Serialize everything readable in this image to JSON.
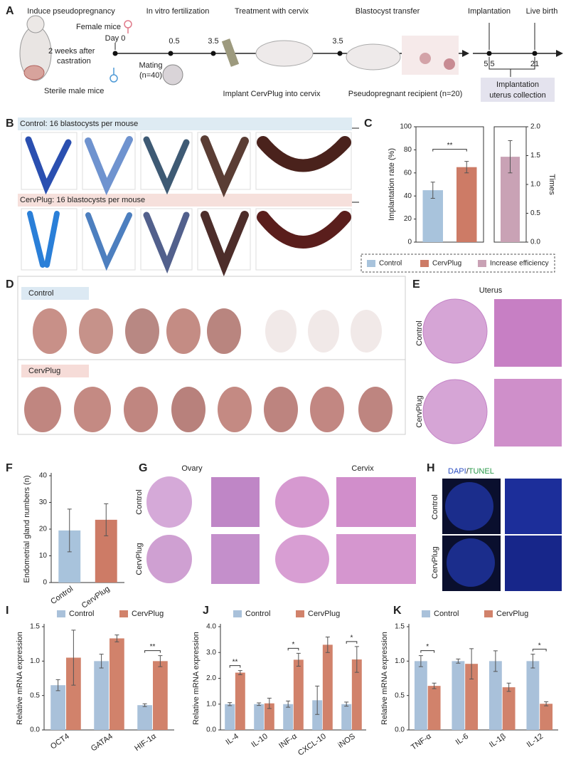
{
  "figure": {
    "panel_labels": [
      "A",
      "B",
      "C",
      "D",
      "E",
      "F",
      "G",
      "H",
      "I",
      "J",
      "K"
    ],
    "a": {
      "steps": [
        "Induce pseudopregnancy",
        "In vitro fertilization",
        "Treatment with cervix",
        "Blastocyst transfer",
        "Implantation",
        "Live birth"
      ],
      "female": "Female mice",
      "castration": [
        "2 weeks after",
        "castration"
      ],
      "male": "Sterile male mice",
      "mating": [
        "Mating",
        "(n=40)"
      ],
      "days": [
        "Day 0",
        "0.5",
        "3.5",
        "3.5",
        "5.5",
        "21"
      ],
      "implant": "Implant CervPlug into cervix",
      "recipient": "Pseudopregnant recipient (n=20)",
      "collection": [
        "Implantation",
        "uterus collection"
      ]
    },
    "b": {
      "control": "Control: 16 blastocysts per mouse",
      "cervplug": "CervPlug: 16 blastocysts per mouse"
    },
    "d": {
      "control": "Control",
      "cervplug": "CervPlug"
    },
    "e": {
      "title": "Uterus",
      "control": "Control",
      "cervplug": "CervPlug"
    },
    "g": {
      "ovary": "Ovary",
      "cervix": "Cervix",
      "control": "Control",
      "cervplug": "CervPlug"
    },
    "h": {
      "title": [
        "DAPI",
        "/",
        "TUNEL"
      ],
      "control": "Control",
      "cervplug": "CervPlug"
    }
  },
  "chart_data": [
    {
      "type": "bar",
      "ylabel": "Implantation rate (%)",
      "y2label": "Times",
      "ylim": [
        0,
        100
      ],
      "yticks": [
        0,
        20,
        40,
        60,
        80,
        100
      ],
      "y2lim": [
        0,
        2
      ],
      "y2ticks": [
        {
          "value": 0,
          "label": "0.0"
        },
        0.5,
        {
          "value": 1,
          "label": "1.0"
        },
        1.5,
        {
          "value": 2,
          "label": "2.0"
        }
      ],
      "significance": "**",
      "series": [
        {
          "name": "Control",
          "color": "#a8c3dc",
          "values": [
            45
          ],
          "errors": [
            7
          ]
        },
        {
          "name": "CervPlug",
          "color": "#cd7b66",
          "values": [
            65
          ],
          "errors": [
            5
          ]
        },
        {
          "name": "Increase efficiency",
          "color": "#c9a2b5",
          "axis": "y2",
          "values": [
            1.48
          ],
          "errors": [
            0.28
          ]
        }
      ]
    },
    {
      "type": "bar",
      "ylabel": "Endometrial gland numbers (n)",
      "ylim": [
        0,
        40
      ],
      "yticks": [
        0,
        10,
        20,
        30,
        40
      ],
      "categories": [
        "Control",
        "CervPlug"
      ],
      "values": [
        19.5,
        23.5
      ],
      "errors": [
        8,
        6
      ],
      "colors": [
        "#a8c3dc",
        "#cd7b66"
      ]
    },
    {
      "type": "bar",
      "ylabel": "Relative mRNA expression",
      "ylim": [
        0,
        1.5
      ],
      "yticks": [
        {
          "value": 0,
          "label": "0.0"
        },
        0.5,
        {
          "value": 1,
          "label": "1.0"
        },
        1.5
      ],
      "categories": [
        "OCT4",
        "GATA4",
        "HIF-1α"
      ],
      "significance": [
        null,
        null,
        "**"
      ],
      "series": [
        {
          "name": "Control",
          "color": "#a9c1da",
          "values": [
            0.65,
            1.0,
            0.36
          ],
          "errors": [
            0.08,
            0.1,
            0.02
          ]
        },
        {
          "name": "CervPlug",
          "color": "#d1826b",
          "values": [
            1.05,
            1.33,
            1.0
          ],
          "errors": [
            0.4,
            0.05,
            0.08
          ]
        }
      ]
    },
    {
      "type": "bar",
      "ylabel": "Relative mRNA expression",
      "ylim": [
        0,
        4
      ],
      "yticks": [
        {
          "value": 0,
          "label": "0.0"
        },
        {
          "value": 1,
          "label": "1.0"
        },
        {
          "value": 2,
          "label": "2.0"
        },
        {
          "value": 3,
          "label": "3.0"
        },
        {
          "value": 4,
          "label": "4.0"
        }
      ],
      "categories": [
        "IL-4",
        "IL-10",
        "INF-α",
        "CXCL-10",
        "iNOS"
      ],
      "significance": [
        "**",
        null,
        "*",
        null,
        "*"
      ],
      "series": [
        {
          "name": "Control",
          "color": "#a9c1da",
          "values": [
            1.0,
            1.0,
            1.0,
            1.15,
            1.0
          ],
          "errors": [
            0.06,
            0.05,
            0.12,
            0.55,
            0.08
          ]
        },
        {
          "name": "CervPlug",
          "color": "#d1826b",
          "values": [
            2.22,
            1.03,
            2.72,
            3.3,
            2.73
          ],
          "errors": [
            0.08,
            0.2,
            0.25,
            0.3,
            0.5
          ]
        }
      ]
    },
    {
      "type": "bar",
      "ylabel": "Relative mRNA expression",
      "ylim": [
        0,
        1.5
      ],
      "yticks": [
        {
          "value": 0,
          "label": "0.0"
        },
        0.5,
        {
          "value": 1,
          "label": "1.0"
        },
        1.5
      ],
      "categories": [
        "TNF-α",
        "IL-6",
        "IL-1β",
        "IL-12"
      ],
      "significance": [
        "*",
        null,
        null,
        "*"
      ],
      "series": [
        {
          "name": "Control",
          "color": "#a9c1da",
          "values": [
            1.0,
            1.0,
            1.0,
            1.0
          ],
          "errors": [
            0.08,
            0.03,
            0.15,
            0.1
          ]
        },
        {
          "name": "CervPlug",
          "color": "#d1826b",
          "values": [
            0.64,
            0.96,
            0.62,
            0.38
          ],
          "errors": [
            0.04,
            0.22,
            0.06,
            0.03
          ]
        }
      ]
    }
  ]
}
